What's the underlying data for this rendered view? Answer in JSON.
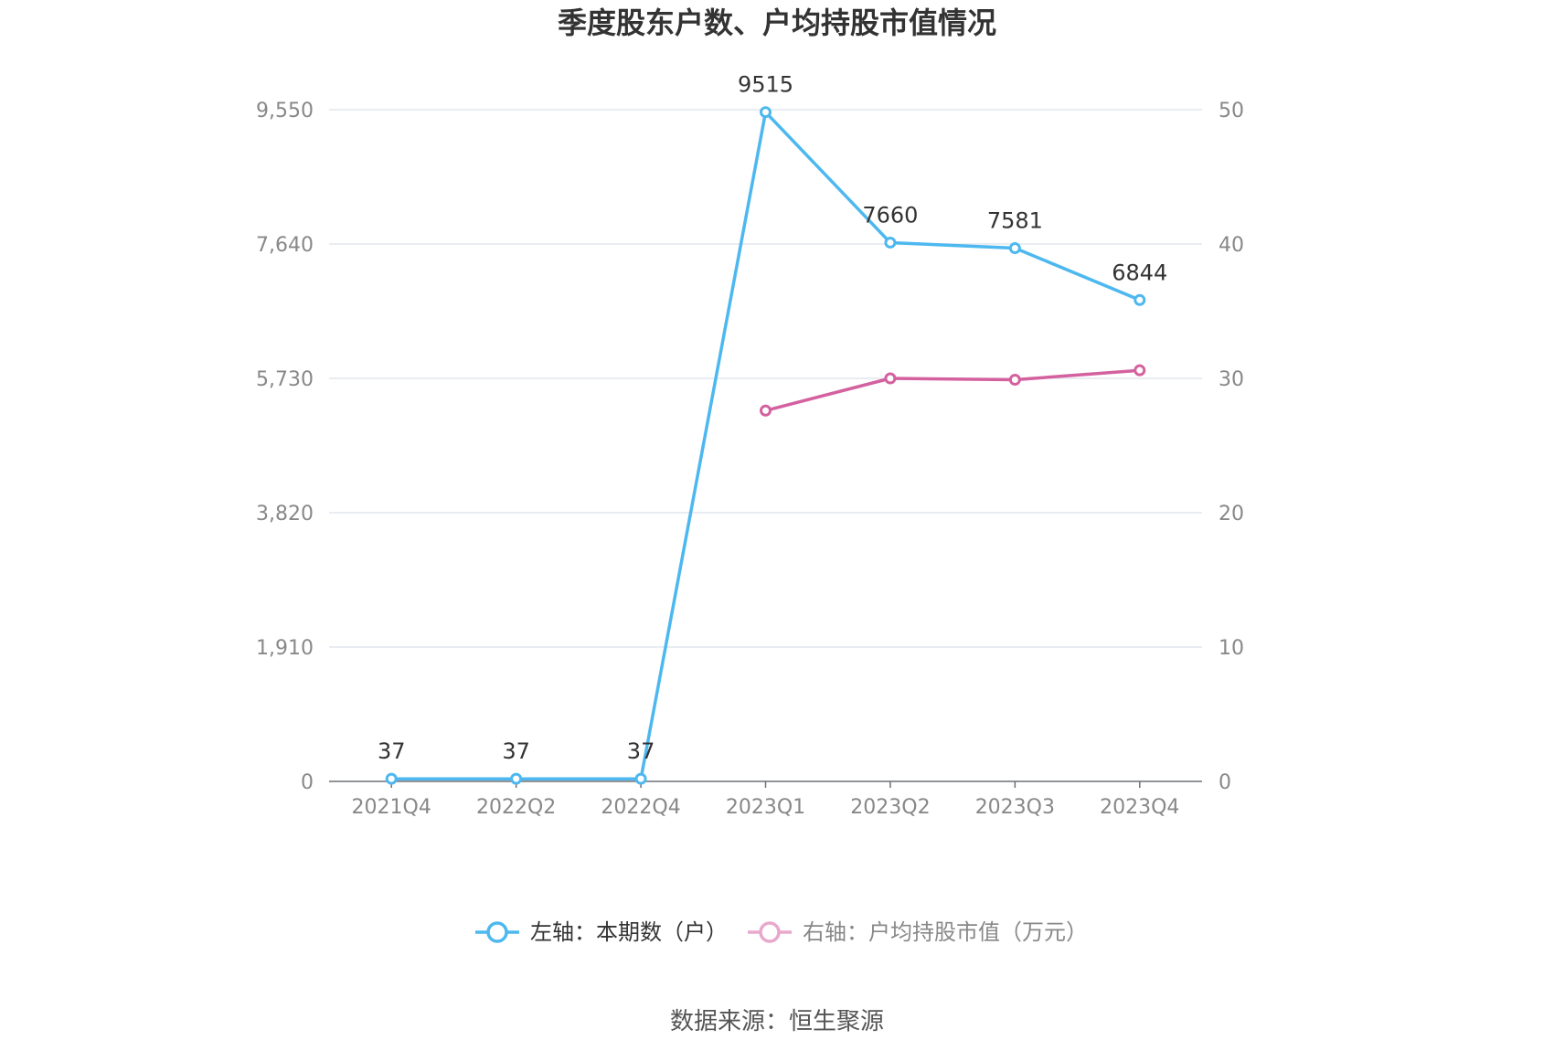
{
  "chart_data": {
    "type": "line",
    "title": "季度股东户数、户均持股市值情况",
    "categories": [
      "2021Q4",
      "2022Q2",
      "2022Q4",
      "2023Q1",
      "2023Q2",
      "2023Q3",
      "2023Q4"
    ],
    "y_left": {
      "ticks": [
        "0",
        "1,910",
        "3,820",
        "5,730",
        "7,640",
        "9,550"
      ],
      "ylim": [
        0,
        9550
      ]
    },
    "y_right": {
      "ticks": [
        "0",
        "10",
        "20",
        "30",
        "40",
        "50"
      ],
      "ylim": [
        0,
        50
      ]
    },
    "series": [
      {
        "name": "左轴：本期数（户）",
        "axis": "left",
        "color": "#4db8ef",
        "values": [
          37,
          37,
          37,
          9515,
          7660,
          7581,
          6844
        ],
        "labels": [
          "37",
          "37",
          "37",
          "9515",
          "7660",
          "7581",
          "6844"
        ]
      },
      {
        "name": "右轴：户均持股市值（万元）",
        "axis": "right",
        "color": "#d4619f",
        "legend_color": "#e8a8cc",
        "values": [
          null,
          null,
          null,
          27.6,
          30.0,
          29.9,
          30.6
        ]
      }
    ],
    "grid": true,
    "legend_position": "bottom"
  },
  "source": "数据来源：恒生聚源"
}
